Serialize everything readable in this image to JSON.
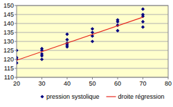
{
  "chart_data": {
    "type": "scatter",
    "series": [
      {
        "name": "pression systolique",
        "type": "scatter",
        "marker": "diamond",
        "color": "#000080",
        "x": [
          20,
          20,
          20,
          20,
          30,
          30,
          30,
          30,
          30,
          40,
          40,
          40,
          40,
          40,
          50,
          50,
          50,
          50,
          60,
          60,
          60,
          60,
          70,
          70,
          70,
          70,
          70
        ],
        "values": [
          125,
          121,
          120,
          118,
          126,
          125,
          123,
          122,
          120,
          134,
          131,
          129,
          128,
          127,
          137,
          135,
          133,
          130,
          142,
          141,
          139,
          136,
          148,
          145,
          144,
          141,
          138
        ]
      },
      {
        "name": "droite régression",
        "type": "line",
        "line_style": "solid",
        "color": "#e8281e",
        "x": [
          20,
          70
        ],
        "values": [
          119.5,
          143.5
        ]
      }
    ],
    "xlim": [
      20,
      80
    ],
    "xticks": [
      20,
      30,
      40,
      50,
      60,
      70,
      80
    ],
    "ylim": [
      110,
      150
    ],
    "yticks": [
      110,
      115,
      120,
      125,
      130,
      135,
      140,
      145,
      150
    ],
    "grid": true,
    "legend": "bottom"
  }
}
